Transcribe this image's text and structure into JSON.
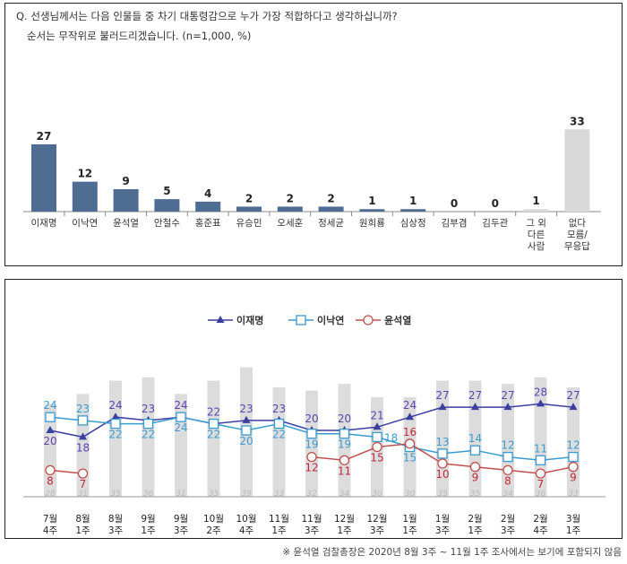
{
  "chart_data": [
    {
      "type": "bar",
      "title": "Q. 선생님께서는 다음 인물들 중 차기 대통령감으로 누가 가장 적합하다고 생각하십니까?",
      "subtitle": "순서는 무작위로 불러드리겠습니다. (n=1,000, %)",
      "categories": [
        [
          "이재명"
        ],
        [
          "이낙연"
        ],
        [
          "윤석열"
        ],
        [
          "안철수"
        ],
        [
          "홍준표"
        ],
        [
          "유승민"
        ],
        [
          "오세훈"
        ],
        [
          "정세균"
        ],
        [
          "원희룡"
        ],
        [
          "심상정"
        ],
        [
          "김부겸"
        ],
        [
          "김두관"
        ],
        [
          "그 외",
          "다른",
          "사람"
        ],
        [
          "없다",
          "모름/",
          "무응답"
        ]
      ],
      "values": [
        27,
        12,
        9,
        5,
        4,
        2,
        2,
        2,
        1,
        1,
        0,
        0,
        1,
        33
      ],
      "colors": [
        "#4f6d92",
        "#4f6d92",
        "#4f6d92",
        "#4f6d92",
        "#4f6d92",
        "#4f6d92",
        "#4f6d92",
        "#4f6d92",
        "#4f6d92",
        "#4f6d92",
        "#4f6d92",
        "#4f6d92",
        "#d9d9d9",
        "#d9d9d9"
      ],
      "ylim": [
        0,
        35
      ]
    },
    {
      "type": "line",
      "categories": [
        [
          "7월",
          "4주"
        ],
        [
          "8월",
          "1주"
        ],
        [
          "8월",
          "3주"
        ],
        [
          "9월",
          "1주"
        ],
        [
          "9월",
          "3주"
        ],
        [
          "10월",
          "2주"
        ],
        [
          "10월",
          "4주"
        ],
        [
          "11월",
          "1주"
        ],
        [
          "11월",
          "3주"
        ],
        [
          "12월",
          "1주"
        ],
        [
          "12월",
          "3주"
        ],
        [
          "1월",
          "1주"
        ],
        [
          "1월",
          "3주"
        ],
        [
          "2월",
          "1주"
        ],
        [
          "2월",
          "3주"
        ],
        [
          "2월",
          "4주"
        ],
        [
          "3월",
          "1주"
        ]
      ],
      "series": [
        {
          "name": "이재명",
          "color": "#3b3fa0",
          "label_color": "#5a45b0",
          "marker": "triangle",
          "values": [
            20,
            18,
            24,
            23,
            24,
            22,
            23,
            23,
            20,
            20,
            21,
            24,
            27,
            27,
            27,
            28,
            27
          ]
        },
        {
          "name": "이낙연",
          "color": "#3a9bd0",
          "label_color": "#3a9bd0",
          "marker": "square",
          "values": [
            24,
            23,
            22,
            22,
            24,
            22,
            20,
            22,
            19,
            19,
            18,
            15,
            13,
            14,
            12,
            11,
            12
          ]
        },
        {
          "name": "윤석열",
          "color": "#c0504d",
          "label_color": "#c0283a",
          "marker": "circle",
          "values": [
            8,
            7,
            null,
            null,
            null,
            null,
            null,
            null,
            12,
            11,
            15,
            16,
            10,
            9,
            8,
            7,
            9
          ]
        }
      ],
      "bar_series": {
        "name": "없다/모름/무응답",
        "color": "#dcdcdc",
        "values": [
          28,
          31,
          35,
          36,
          31,
          35,
          39,
          33,
          32,
          34,
          30,
          30,
          35,
          35,
          34,
          36,
          33
        ]
      },
      "ylim": [
        0,
        40
      ]
    }
  ],
  "footnote": "※ 윤석열 검찰총장은 2020년 8월 3주 ~ 11월 1주 조사에서는 보기에 포함되지 않음"
}
